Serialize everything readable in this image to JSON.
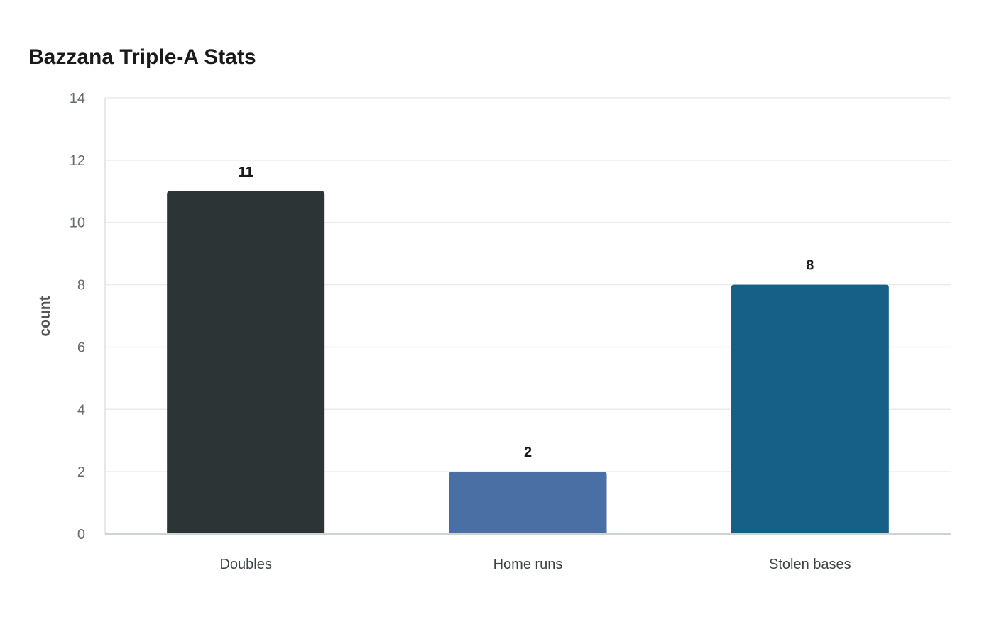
{
  "chart_data": {
    "type": "bar",
    "title": "Bazzana Triple-A Stats",
    "xlabel": "",
    "ylabel": "count",
    "categories": [
      "Doubles",
      "Home runs",
      "Stolen bases"
    ],
    "values": [
      11,
      2,
      8
    ],
    "data_labels": [
      "11",
      "2",
      "8"
    ],
    "colors": [
      "#2d3436",
      "#4a6fa5",
      "#166088"
    ],
    "ylim": [
      0,
      14
    ],
    "yticks": [
      0,
      2,
      4,
      6,
      8,
      10,
      12,
      14
    ],
    "grid": true,
    "legend": "none"
  }
}
